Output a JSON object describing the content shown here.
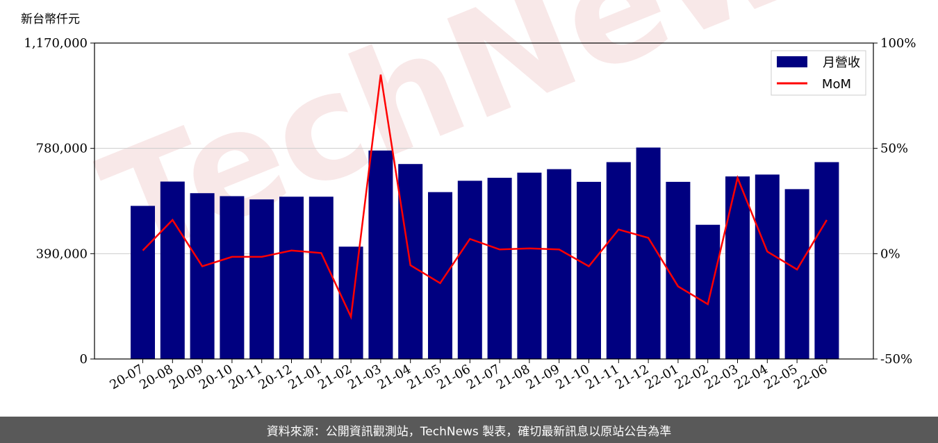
{
  "watermark": "TechNews",
  "footer": {
    "source_text": "資料來源：公開資訊觀測站，TechNews 製表，確切最新訊息以原站公告為準"
  },
  "colors": {
    "bar": "#000080",
    "line": "#ff0000",
    "grid": "#cccccc",
    "footer_bg": "#595959"
  },
  "chart_data": {
    "type": "bar",
    "unit_label": "新台幣仟元",
    "categories": [
      "20-07",
      "20-08",
      "20-09",
      "20-10",
      "20-11",
      "20-12",
      "21-01",
      "21-02",
      "21-03",
      "21-04",
      "21-05",
      "21-06",
      "21-07",
      "21-08",
      "21-09",
      "21-10",
      "21-11",
      "21-12",
      "22-01",
      "22-02",
      "22-03",
      "22-04",
      "22-05",
      "22-06"
    ],
    "series": [
      {
        "name": "月營收",
        "type": "bar",
        "axis": "left",
        "values": [
          567000,
          657000,
          614000,
          603000,
          591000,
          601000,
          601000,
          416000,
          772000,
          722000,
          618000,
          660000,
          671000,
          690000,
          703000,
          656000,
          729000,
          783000,
          656000,
          497000,
          676000,
          683000,
          629000,
          729000
        ]
      },
      {
        "name": "MoM",
        "type": "line",
        "axis": "right",
        "values": [
          1.5,
          16,
          -6,
          -1.5,
          -1.5,
          1.5,
          0.3,
          -30,
          85,
          -5.5,
          -14,
          7,
          2,
          2.5,
          2,
          -6,
          11.5,
          7.5,
          -15.5,
          -24,
          36,
          1,
          -7.5,
          16
        ]
      }
    ],
    "left_axis": {
      "ylim": [
        0,
        1170000
      ],
      "ticks": [
        "0",
        "390,000",
        "780,000",
        "1,170,000"
      ],
      "tick_values": [
        0,
        390000,
        780000,
        1170000
      ]
    },
    "right_axis": {
      "ylim": [
        -50,
        100
      ],
      "ticks": [
        "-50%",
        "0%",
        "50%",
        "100%"
      ],
      "tick_values": [
        -50,
        0,
        50,
        100
      ]
    },
    "grid": true,
    "legend_position": "top-right"
  }
}
